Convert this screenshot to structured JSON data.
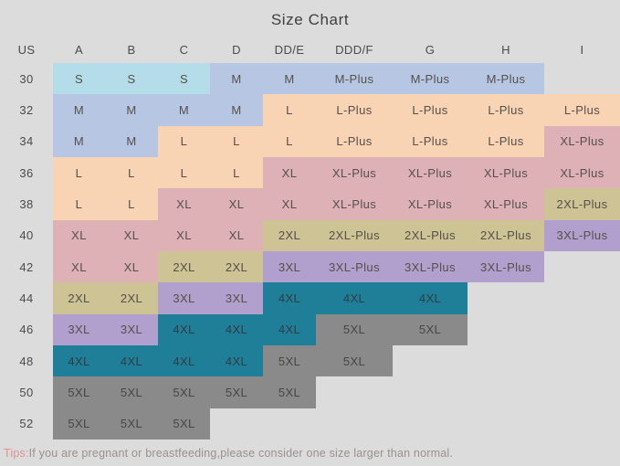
{
  "title": "Size Chart",
  "chart_data": {
    "type": "table",
    "columns": [
      "US",
      "A",
      "B",
      "C",
      "D",
      "DD/E",
      "DDD/F",
      "G",
      "H",
      "I"
    ],
    "rows": [
      {
        "us": "30",
        "cells": [
          "S",
          "S",
          "S",
          "M",
          "M",
          "M-Plus",
          "M-Plus",
          "M-Plus",
          null
        ]
      },
      {
        "us": "32",
        "cells": [
          "M",
          "M",
          "M",
          "M",
          "L",
          "L-Plus",
          "L-Plus",
          "L-Plus",
          "L-Plus"
        ]
      },
      {
        "us": "34",
        "cells": [
          "M",
          "M",
          "L",
          "L",
          "L",
          "L-Plus",
          "L-Plus",
          "L-Plus",
          "XL-Plus"
        ]
      },
      {
        "us": "36",
        "cells": [
          "L",
          "L",
          "L",
          "L",
          "XL",
          "XL-Plus",
          "XL-Plus",
          "XL-Plus",
          "XL-Plus"
        ]
      },
      {
        "us": "38",
        "cells": [
          "L",
          "L",
          "XL",
          "XL",
          "XL",
          "XL-Plus",
          "XL-Plus",
          "XL-Plus",
          "2XL-Plus"
        ]
      },
      {
        "us": "40",
        "cells": [
          "XL",
          "XL",
          "XL",
          "XL",
          "2XL",
          "2XL-Plus",
          "2XL-Plus",
          "2XL-Plus",
          "3XL-Plus"
        ]
      },
      {
        "us": "42",
        "cells": [
          "XL",
          "XL",
          "2XL",
          "2XL",
          "3XL",
          "3XL-Plus",
          "3XL-Plus",
          "3XL-Plus",
          null
        ]
      },
      {
        "us": "44",
        "cells": [
          "2XL",
          "2XL",
          "3XL",
          "3XL",
          "4XL",
          "4XL",
          "4XL",
          null,
          null
        ]
      },
      {
        "us": "46",
        "cells": [
          "3XL",
          "3XL",
          "4XL",
          "4XL",
          "4XL",
          "5XL",
          "5XL",
          null,
          null
        ]
      },
      {
        "us": "48",
        "cells": [
          "4XL",
          "4XL",
          "4XL",
          "4XL",
          "5XL",
          "5XL",
          null,
          null,
          null
        ]
      },
      {
        "us": "50",
        "cells": [
          "5XL",
          "5XL",
          "5XL",
          "5XL",
          "5XL",
          null,
          null,
          null,
          null
        ]
      },
      {
        "us": "52",
        "cells": [
          "5XL",
          "5XL",
          "5XL",
          null,
          null,
          null,
          null,
          null,
          null
        ]
      }
    ]
  },
  "colors": {
    "background": "#dcdcdc",
    "sizes": {
      "S": "#b5dde9",
      "M": "#b7c7e3",
      "L": "#f8d3b4",
      "XL": "#deb1b6",
      "2XL": "#cdc394",
      "3XL": "#b19fcd",
      "4XL": "#1f7f99",
      "5XL": "#8a8a8a"
    },
    "cell_text": {
      "default": "#55504b",
      "4XL": "#313d42",
      "5XL": "#464646"
    },
    "tip_prefix": "#e0908f",
    "tip_body": "#98918e"
  },
  "tip": {
    "prefix": "Tips:",
    "text": "If you are pregnant or breastfeeding,please consider one size larger than normal."
  }
}
